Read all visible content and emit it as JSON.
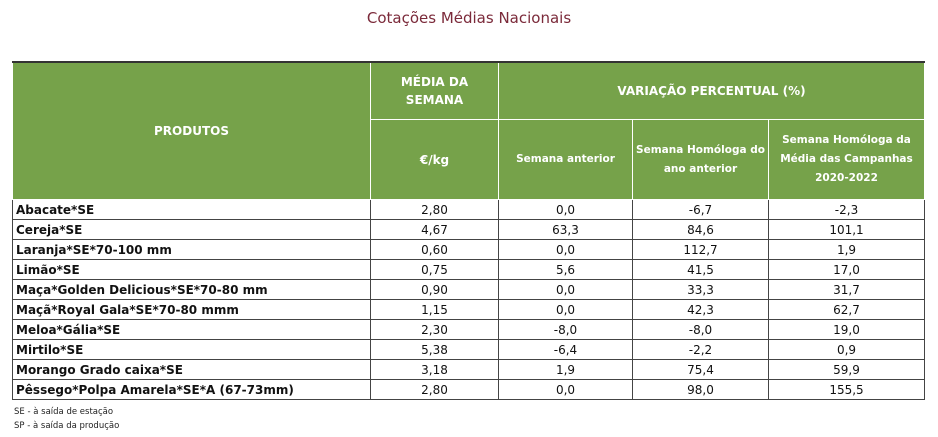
{
  "title": "Cotações Médias Nacionais",
  "header": {
    "produtos": "PRODUTOS",
    "media_semana": "MÉDIA DA SEMANA",
    "unit": "€/kg",
    "variacao": "VARIAÇÃO PERCENTUAL (%)",
    "semana_anterior": "Semana anterior",
    "semana_homologa": "Semana Homóloga do ano anterior",
    "semana_homologa_media": "Semana Homóloga da Média das Campanhas 2020-2022"
  },
  "rows": [
    {
      "produto": "Abacate*SE",
      "media": "2,80",
      "sem_ant": "0,0",
      "hom_ano": "-6,7",
      "hom_media": "-2,3"
    },
    {
      "produto": "Cereja*SE",
      "media": "4,67",
      "sem_ant": "63,3",
      "hom_ano": "84,6",
      "hom_media": "101,1"
    },
    {
      "produto": "Laranja*SE*70-100 mm",
      "media": "0,60",
      "sem_ant": "0,0",
      "hom_ano": "112,7",
      "hom_media": "1,9"
    },
    {
      "produto": "Limão*SE",
      "media": "0,75",
      "sem_ant": "5,6",
      "hom_ano": "41,5",
      "hom_media": "17,0"
    },
    {
      "produto": "Maça*Golden Delicious*SE*70-80 mm",
      "media": "0,90",
      "sem_ant": "0,0",
      "hom_ano": "33,3",
      "hom_media": "31,7"
    },
    {
      "produto": "Maçã*Royal Gala*SE*70-80 mmm",
      "media": "1,15",
      "sem_ant": "0,0",
      "hom_ano": "42,3",
      "hom_media": "62,7"
    },
    {
      "produto": "Meloa*Gália*SE",
      "media": "2,30",
      "sem_ant": "-8,0",
      "hom_ano": "-8,0",
      "hom_media": "19,0"
    },
    {
      "produto": "Mirtilo*SE",
      "media": "5,38",
      "sem_ant": "-6,4",
      "hom_ano": "-2,2",
      "hom_media": "0,9"
    },
    {
      "produto": "Morango Grado caixa*SE",
      "media": "3,18",
      "sem_ant": "1,9",
      "hom_ano": "75,4",
      "hom_media": "59,9"
    },
    {
      "produto": "Pêssego*Polpa Amarela*SE*A (67-73mm)",
      "media": "2,80",
      "sem_ant": "0,0",
      "hom_ano": "98,0",
      "hom_media": "155,5"
    }
  ],
  "footnotes": [
    "SE - à saída de estação",
    "SP - à saída da produção"
  ],
  "colors": {
    "header_green": "#76a24a",
    "title_maroon": "#7b2a3a"
  }
}
